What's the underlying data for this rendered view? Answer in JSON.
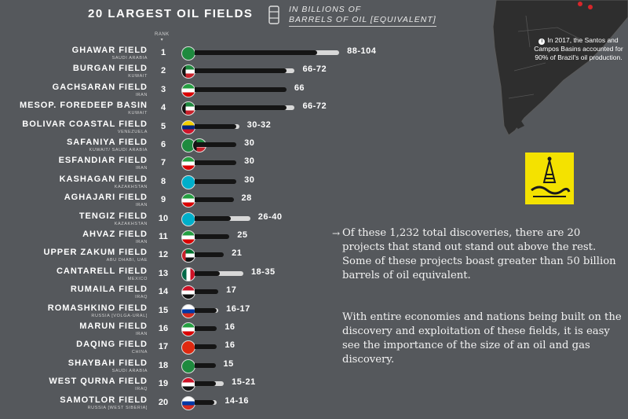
{
  "title": "20 LARGEST OIL FIELDS",
  "unit_line1": "IN BILLIONS OF",
  "unit_line2": "BARRELS OF OIL [EQUIVALENT]",
  "rank_header": "RANK",
  "map_note": "In 2017, the Santos and Campos Basins accounted for 90% of Brazil's oil production.",
  "paragraph1": "Of these 1,232 total discoveries, there are 20 projects that stand out stand out above the rest. Some of these projects boast greater than 50 billion barrels of oil equivalent.",
  "paragraph2": "With entire economies and nations being built on the discovery and exploitation of these fields, it is easy see the importance of the size of an oil and gas discovery.",
  "colors": {
    "bar_low": "#151515",
    "bar_high": "#d8d8d8",
    "background": "#55585c",
    "logo": "#f4e200"
  },
  "chart_data": {
    "type": "bar",
    "orientation": "horizontal",
    "title": "20 LARGEST OIL FIELDS",
    "xlabel": "IN BILLIONS OF BARRELS OF OIL [EQUIVALENT]",
    "fields": [
      {
        "rank": "1",
        "name": "GHAWAR FIELD",
        "country": "SAUDI ARABIA",
        "label": "88-104",
        "low": 88,
        "high": 104,
        "flag": "saudi-arabia"
      },
      {
        "rank": "2",
        "name": "BURGAN FIELD",
        "country": "KUWAIT",
        "label": "66-72",
        "low": 66,
        "high": 72,
        "flag": "kuwait"
      },
      {
        "rank": "3",
        "name": "GACHSARAN FIELD",
        "country": "IRAN",
        "label": "66",
        "low": 66,
        "high": 66,
        "flag": "iran"
      },
      {
        "rank": "4",
        "name": "MESOP. FOREDEEP BASIN",
        "country": "KUWAIT",
        "label": "66-72",
        "low": 66,
        "high": 72,
        "flag": "kuwait"
      },
      {
        "rank": "5",
        "name": "BOLIVAR COASTAL FIELD",
        "country": "VENEZUELA",
        "label": "30-32",
        "low": 30,
        "high": 32,
        "flag": "venezuela"
      },
      {
        "rank": "6",
        "name": "SAFANIYA FIELD",
        "country": "KUWAIT/ SAUDI ARABIA",
        "label": "30",
        "low": 30,
        "high": 30,
        "flag": "saudi-arabia-kuwait"
      },
      {
        "rank": "7",
        "name": "ESFANDIAR FIELD",
        "country": "IRAN",
        "label": "30",
        "low": 30,
        "high": 30,
        "flag": "iran"
      },
      {
        "rank": "8",
        "name": "KASHAGAN FIELD",
        "country": "KAZAKHSTAN",
        "label": "30",
        "low": 30,
        "high": 30,
        "flag": "kazakhstan"
      },
      {
        "rank": "9",
        "name": "AGHAJARI FIELD",
        "country": "IRAN",
        "label": "28",
        "low": 28,
        "high": 28,
        "flag": "iran"
      },
      {
        "rank": "10",
        "name": "TENGIZ FIELD",
        "country": "KAZAKHSTAN",
        "label": "26-40",
        "low": 26,
        "high": 40,
        "flag": "kazakhstan"
      },
      {
        "rank": "11",
        "name": "AHVAZ FIELD",
        "country": "IRAN",
        "label": "25",
        "low": 25,
        "high": 25,
        "flag": "iran"
      },
      {
        "rank": "12",
        "name": "UPPER ZAKUM FIELD",
        "country": "ABU DHABI, UAE",
        "label": "21",
        "low": 21,
        "high": 21,
        "flag": "uae"
      },
      {
        "rank": "13",
        "name": "CANTARELL FIELD",
        "country": "MEXICO",
        "label": "18-35",
        "low": 18,
        "high": 35,
        "flag": "mexico"
      },
      {
        "rank": "14",
        "name": "RUMAILA FIELD",
        "country": "IRAQ",
        "label": "17",
        "low": 17,
        "high": 17,
        "flag": "iraq"
      },
      {
        "rank": "15",
        "name": "ROMASHKINO FIELD",
        "country": "RUSSIA [VOLGA-URAL]",
        "label": "16-17",
        "low": 16,
        "high": 17,
        "flag": "russia"
      },
      {
        "rank": "16",
        "name": "MARUN FIELD",
        "country": "IRAN",
        "label": "16",
        "low": 16,
        "high": 16,
        "flag": "iran"
      },
      {
        "rank": "17",
        "name": "DAQING FIELD",
        "country": "CHINA",
        "label": "16",
        "low": 16,
        "high": 16,
        "flag": "china"
      },
      {
        "rank": "18",
        "name": "SHAYBAH FIELD",
        "country": "SAUDI ARABIA",
        "label": "15",
        "low": 15,
        "high": 15,
        "flag": "saudi-arabia"
      },
      {
        "rank": "19",
        "name": "WEST QURNA FIELD",
        "country": "IRAQ",
        "label": "15-21",
        "low": 15,
        "high": 21,
        "flag": "iraq"
      },
      {
        "rank": "20",
        "name": "SAMOTLOR FIELD",
        "country": "RUSSIA [WEST SIBERIA]",
        "label": "14-16",
        "low": 14,
        "high": 16,
        "flag": "russia"
      }
    ]
  }
}
